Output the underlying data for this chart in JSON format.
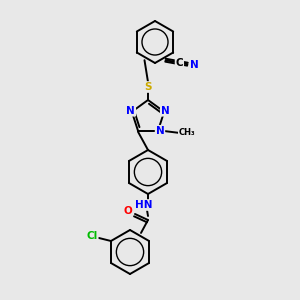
{
  "bg_color": "#e8e8e8",
  "bond_color": "#000000",
  "atom_colors": {
    "N": "#0000ff",
    "O": "#ff0000",
    "S": "#ccaa00",
    "Cl": "#00bb00",
    "C": "#000000"
  },
  "fs": 7.5,
  "lw": 1.4,
  "scale": 1.0
}
